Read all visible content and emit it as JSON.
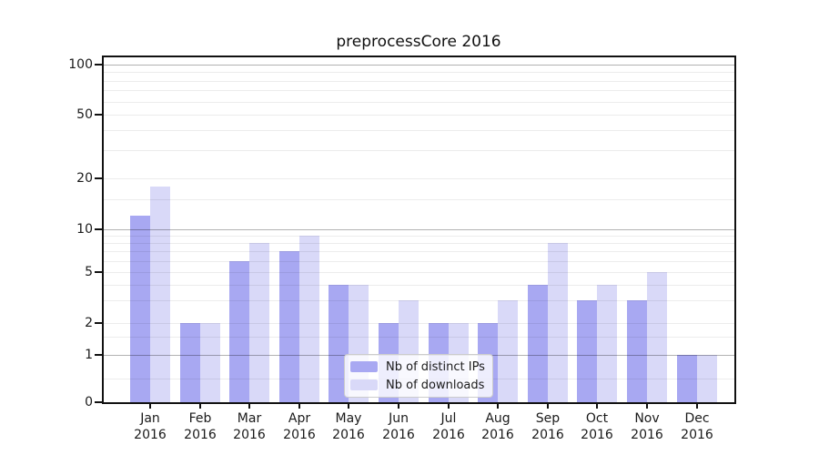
{
  "chart_data": {
    "type": "bar",
    "title": "preprocessCore 2016",
    "categories": [
      "Jan",
      "Feb",
      "Mar",
      "Apr",
      "May",
      "Jun",
      "Jul",
      "Aug",
      "Sep",
      "Oct",
      "Nov",
      "Dec"
    ],
    "year": "2016",
    "series": [
      {
        "name": "Nb of distinct IPs",
        "color": "#a8a8f2",
        "values": [
          12,
          2,
          6,
          7,
          4,
          2,
          2,
          2,
          4,
          3,
          3,
          1
        ]
      },
      {
        "name": "Nb of downloads",
        "color": "#d9d9f8",
        "values": [
          18,
          2,
          8,
          9,
          4,
          3,
          2,
          3,
          8,
          4,
          5,
          1
        ]
      }
    ],
    "y_ticks": [
      0,
      1,
      2,
      5,
      10,
      20,
      50,
      100
    ],
    "y_major_gridlines": [
      1,
      10,
      100
    ],
    "y_minor_gridlines": [
      0.5,
      1.5,
      3,
      4,
      6,
      7,
      8,
      9,
      15,
      30,
      40,
      60,
      70,
      80,
      90
    ],
    "yscale": "log-like (linear below 1)",
    "ylim": [
      0,
      130
    ],
    "grid": true,
    "legend_position": "lower center",
    "colors": {
      "distinct_ips_bar": "#a8a8f2",
      "downloads_bar": "#d9d9f8",
      "major_grid": "#b2b2b2",
      "minor_grid": "#ececec",
      "axis": "#111111",
      "text": "#1a1a1a",
      "legend_border": "#cccccc",
      "background": "#ffffff"
    }
  }
}
